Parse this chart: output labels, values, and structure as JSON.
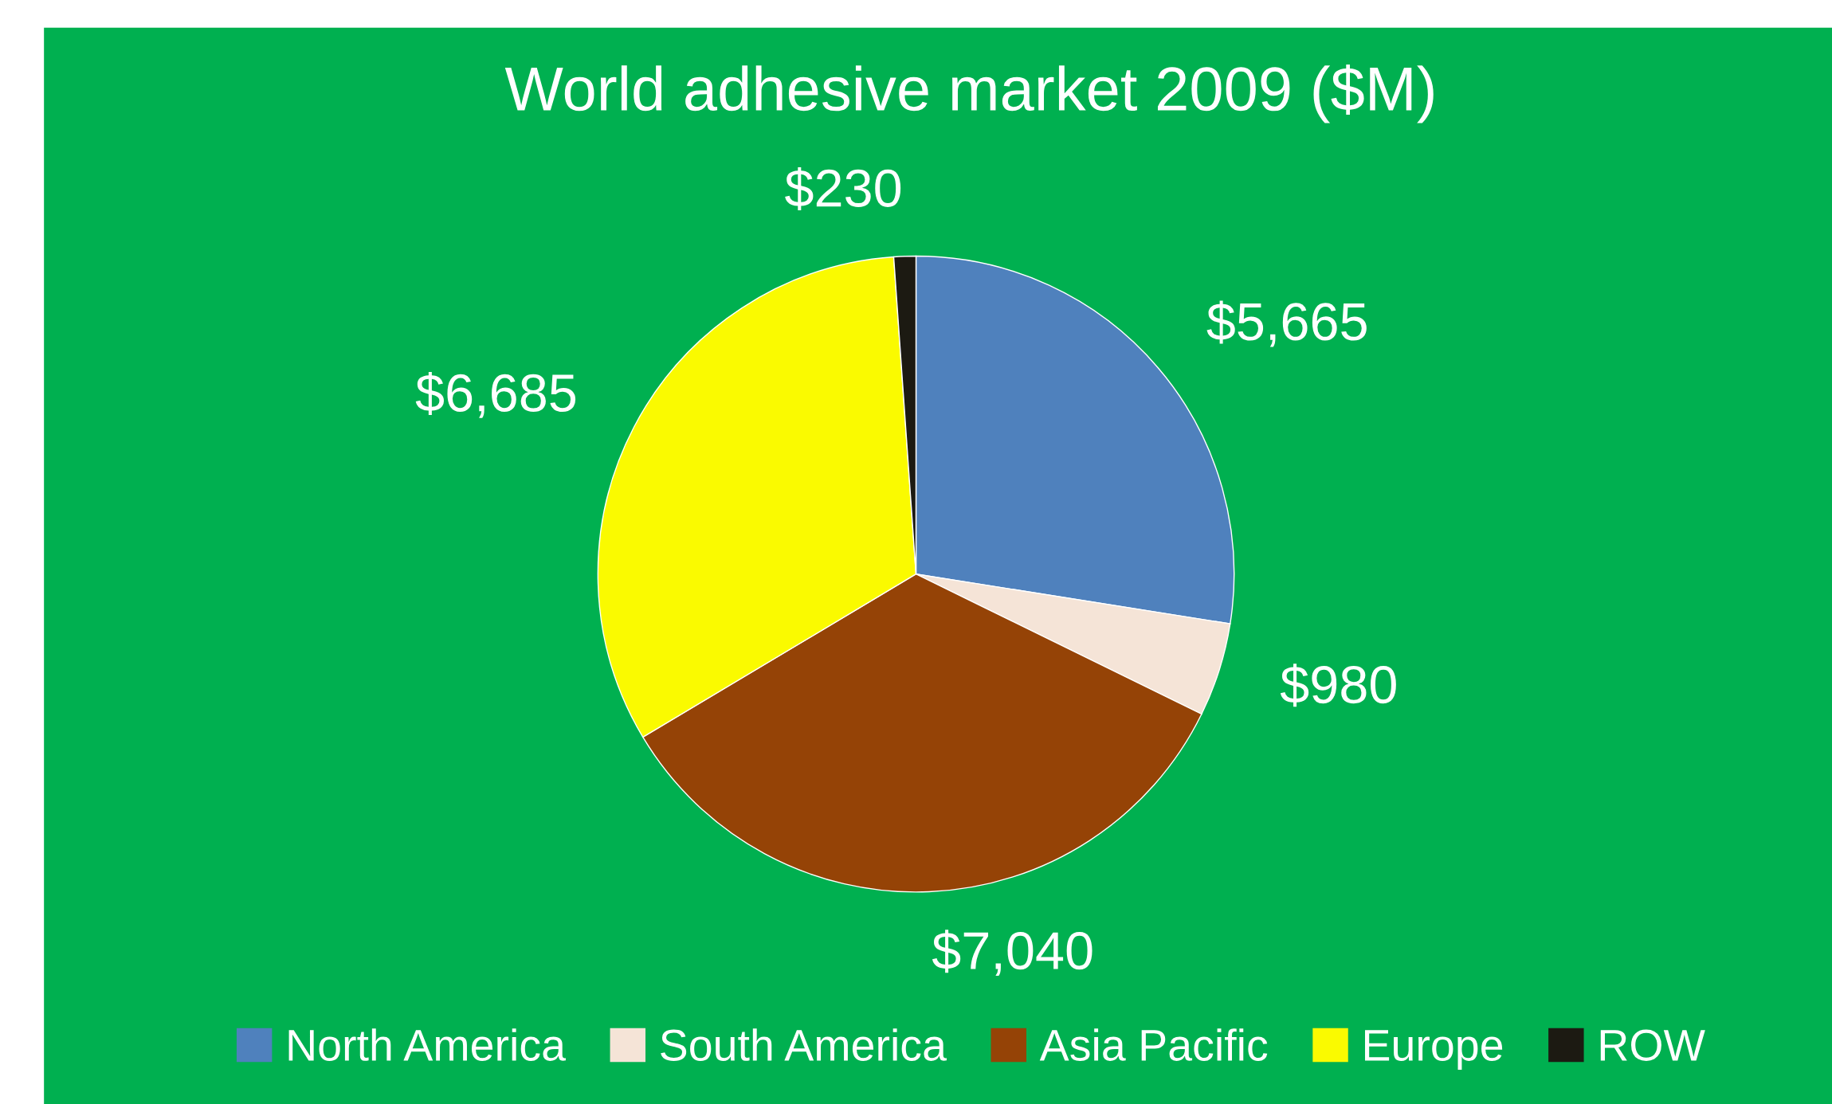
{
  "chart_data": {
    "type": "pie",
    "title": "World adhesive market 2009 ($M)",
    "categories": [
      "North America",
      "South America",
      "Asia Pacific",
      "Europe",
      "ROW"
    ],
    "values": [
      5665,
      980,
      7040,
      6685,
      230
    ],
    "colors": [
      "#4f81bd",
      "#f5e4d7",
      "#954306",
      "#fafa00",
      "#1c1a12"
    ],
    "value_labels": [
      "$5,665",
      "$980",
      "$7,040",
      "$6,685",
      "$230"
    ],
    "legend": "bottom"
  }
}
